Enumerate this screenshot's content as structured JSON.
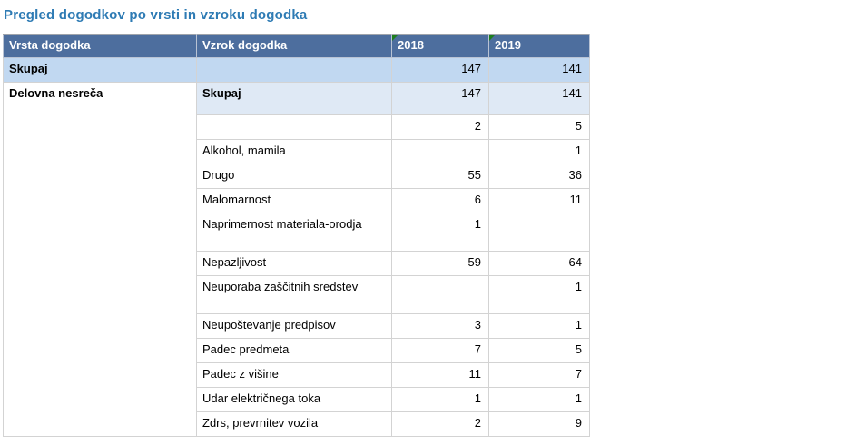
{
  "title": "Pregled dogodkov po vrsti in vzroku dogodka",
  "table": {
    "columns": [
      "Vrsta dogodka",
      "Vzrok dogodka",
      "2018",
      "2019"
    ],
    "total": {
      "vrsta": "Skupaj",
      "vzrok": "",
      "y2018": "147",
      "y2019": "141"
    },
    "group": {
      "vrsta": "Delovna nesreča",
      "rows": [
        {
          "vzrok": "Skupaj",
          "y2018": "147",
          "y2019": "141",
          "style": "subtotal"
        },
        {
          "vzrok": "",
          "y2018": "2",
          "y2019": "5"
        },
        {
          "vzrok": "Alkohol, mamila",
          "y2018": "",
          "y2019": "1"
        },
        {
          "vzrok": "Drugo",
          "y2018": "55",
          "y2019": "36"
        },
        {
          "vzrok": "Malomarnost",
          "y2018": "6",
          "y2019": "11"
        },
        {
          "vzrok": "Naprimernost materiala-orodja",
          "y2018": "1",
          "y2019": "",
          "tall": true
        },
        {
          "vzrok": "Nepazljivost",
          "y2018": "59",
          "y2019": "64"
        },
        {
          "vzrok": "Neuporaba zaščitnih sredstev",
          "y2018": "",
          "y2019": "1",
          "tall": true
        },
        {
          "vzrok": "Neupoštevanje predpisov",
          "y2018": "3",
          "y2019": "1"
        },
        {
          "vzrok": "Padec predmeta",
          "y2018": "7",
          "y2019": "5"
        },
        {
          "vzrok": "Padec z višine",
          "y2018": "11",
          "y2019": "7"
        },
        {
          "vzrok": "Udar električnega toka",
          "y2018": "1",
          "y2019": "1"
        },
        {
          "vzrok": "Zdrs, prevrnitev vozila",
          "y2018": "2",
          "y2019": "9"
        }
      ]
    }
  },
  "colors": {
    "title_color": "#2e7bb4",
    "header_bg": "#4d6e9e",
    "header_text": "#ffffff",
    "total_row_bg": "#c1d8f1",
    "subtotal_row_bg": "#dfe9f5",
    "corner_flag": "#1e7e1e",
    "border_inner": "#d3d3d3",
    "border_outer": "#9fa4ab",
    "text_color": "#000000"
  }
}
